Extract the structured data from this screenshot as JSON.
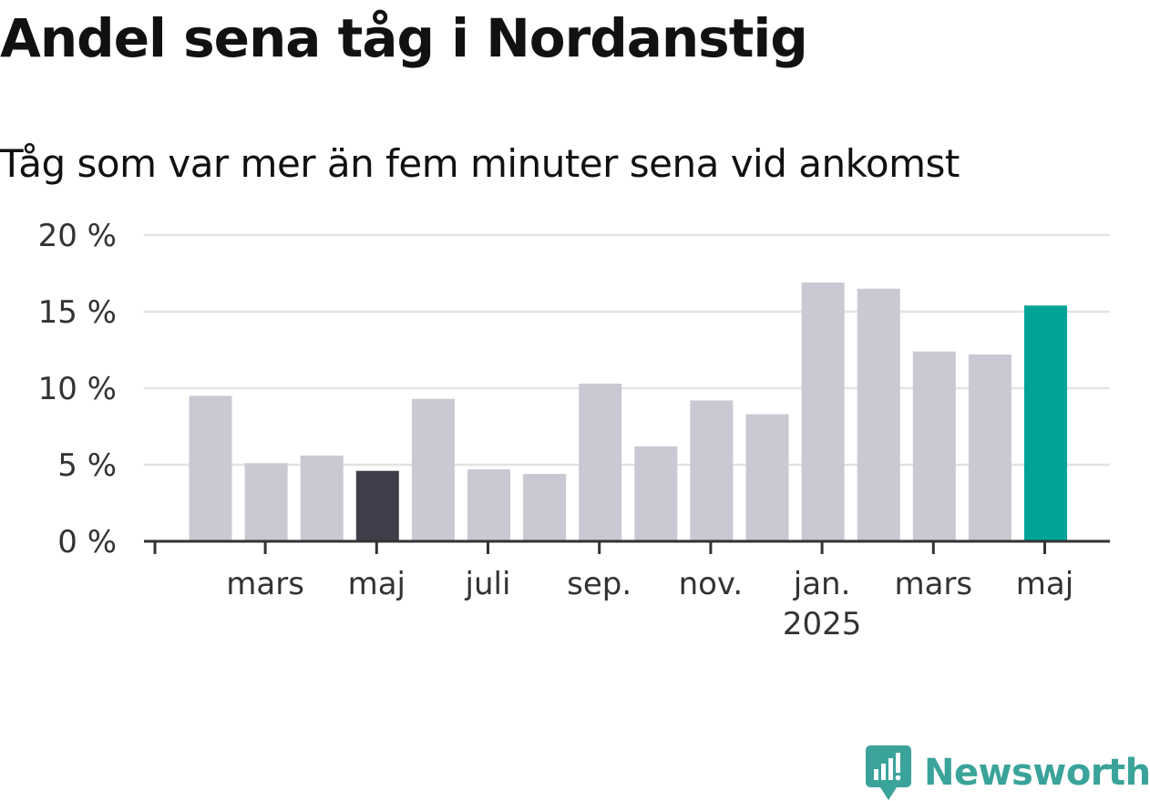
{
  "header": {
    "title": "Andel sena tåg i Nordanstig",
    "subtitle": "Tåg som var mer än fem minuter sena vid ankomst"
  },
  "logo": {
    "text": "Newsworthy",
    "icon": "newsworthy-logo-icon",
    "color": "#3aa39a"
  },
  "colors": {
    "default_bar": "#c9c8d3",
    "highlight_dark": "#3f3e4b",
    "highlight_accent": "#00a398",
    "grid": "#e3e3e3",
    "axis": "#333333"
  },
  "chart_data": {
    "type": "bar",
    "categories": [
      "2024-02",
      "2024-03",
      "2024-04",
      "2024-05",
      "2024-06",
      "2024-07",
      "2024-08",
      "2024-09",
      "2024-10",
      "2024-11",
      "2024-12",
      "2025-01",
      "2025-02",
      "2025-03",
      "2025-04",
      "2025-05"
    ],
    "values": [
      9.5,
      5.1,
      5.6,
      4.6,
      9.3,
      4.7,
      4.4,
      10.3,
      6.2,
      9.2,
      8.3,
      16.9,
      16.5,
      12.4,
      12.2,
      15.4
    ],
    "highlight": {
      "2024-05": "dark",
      "2025-05": "accent"
    },
    "ylim": [
      0,
      20
    ],
    "yticks": [
      0,
      5,
      10,
      15,
      20
    ],
    "ytick_labels": [
      "0 %",
      "5 %",
      "10 %",
      "15 %",
      "20 %"
    ],
    "xtick_labels": [
      {
        "category": "2024-03",
        "label": "mars",
        "sublabel": ""
      },
      {
        "category": "2024-05",
        "label": "maj",
        "sublabel": ""
      },
      {
        "category": "2024-07",
        "label": "juli",
        "sublabel": ""
      },
      {
        "category": "2024-09",
        "label": "sep.",
        "sublabel": ""
      },
      {
        "category": "2024-11",
        "label": "nov.",
        "sublabel": ""
      },
      {
        "category": "2025-01",
        "label": "jan.",
        "sublabel": "2025"
      },
      {
        "category": "2025-03",
        "label": "mars",
        "sublabel": ""
      },
      {
        "category": "2025-05",
        "label": "maj",
        "sublabel": ""
      }
    ],
    "xlabel": "",
    "ylabel": "",
    "grid": true
  }
}
